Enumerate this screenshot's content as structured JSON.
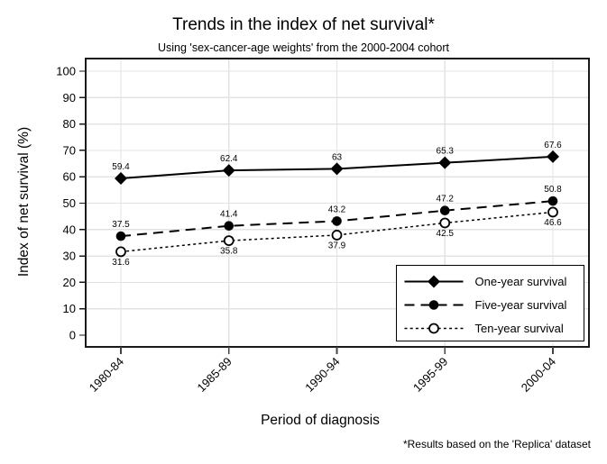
{
  "chart_data": {
    "type": "line",
    "title": "Trends in the index of net survival*",
    "subtitle": "Using 'sex-cancer-age weights' from the 2000-2004 cohort",
    "footnote": "*Results based on the 'Replica' dataset",
    "xlabel": "Period of diagnosis",
    "ylabel": "Index of net survival (%)",
    "categories": [
      "1980-84",
      "1985-89",
      "1990-94",
      "1995-99",
      "2000-04"
    ],
    "series": [
      {
        "name": "One-year survival",
        "values": [
          59.4,
          62.4,
          63,
          65.3,
          67.6
        ],
        "marker": "filled-diamond",
        "line": "solid",
        "label_position": "above"
      },
      {
        "name": "Five-year survival",
        "values": [
          37.5,
          41.4,
          43.2,
          47.2,
          50.8
        ],
        "marker": "filled-circle",
        "line": "long-dash",
        "label_position": "above"
      },
      {
        "name": "Ten-year survival",
        "values": [
          31.6,
          35.8,
          37.9,
          42.5,
          46.6
        ],
        "marker": "open-circle",
        "line": "short-dash",
        "label_position": "below"
      }
    ],
    "ylim": [
      0,
      100
    ],
    "yticks": [
      0,
      10,
      20,
      30,
      40,
      50,
      60,
      70,
      80,
      90,
      100
    ],
    "grid": true,
    "gridline_at_zero": false,
    "legend_position": "bottom-right-inside",
    "colors": {
      "foreground": "#000000",
      "grid": "#e3e3e3",
      "background": "#ffffff",
      "axis": "#1a1a1a",
      "x_tick": "#444444"
    }
  }
}
